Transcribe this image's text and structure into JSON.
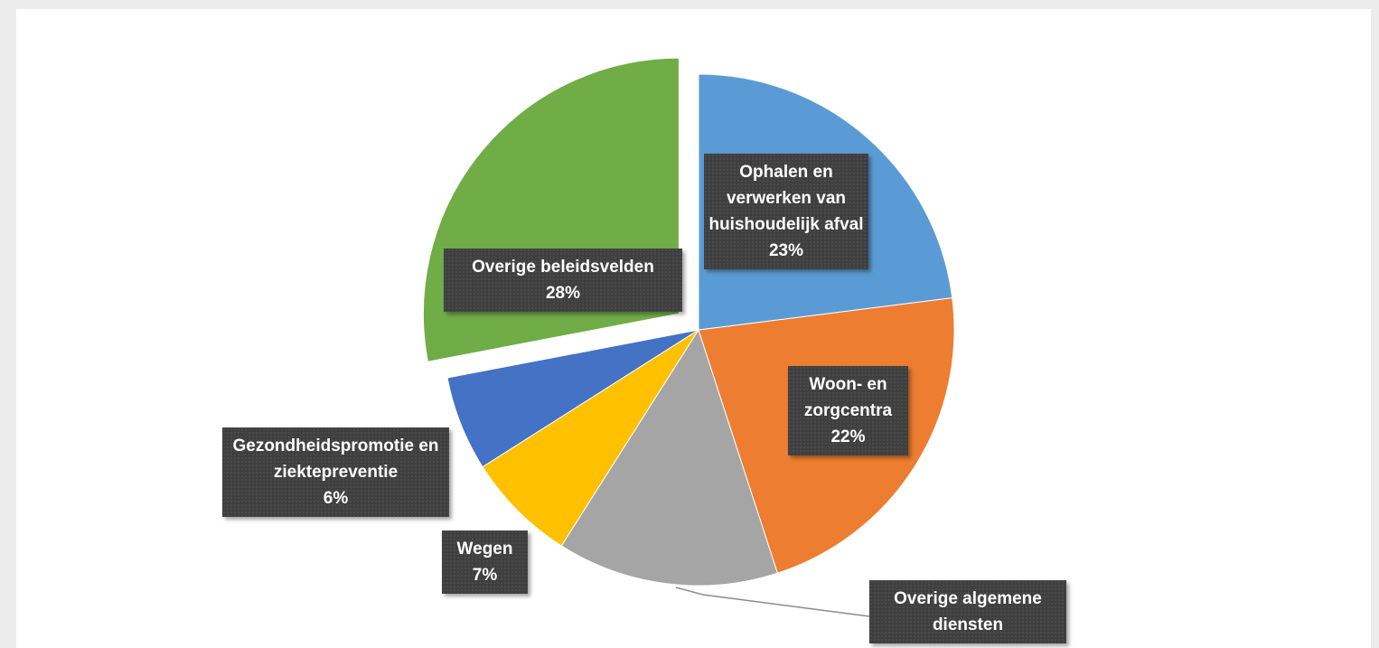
{
  "chart_data": {
    "type": "pie",
    "categories": [
      "Ophalen en verwerken van huishoudelijk afval",
      "Woon- en zorgcentra",
      "Overige algemene diensten",
      "Wegen",
      "Gezondheidspromotie en ziektepreventie",
      "Overige beleidsvelden"
    ],
    "values": [
      23,
      22,
      14,
      7,
      6,
      28
    ],
    "value_labels": [
      "23%",
      "22%",
      null,
      "7%",
      "6%",
      "28%"
    ],
    "colors": [
      "#5b9bd5",
      "#ed7d31",
      "#a5a5a5",
      "#ffc000",
      "#4472c4",
      "#70ad47"
    ],
    "exploded": [
      5
    ]
  }
}
